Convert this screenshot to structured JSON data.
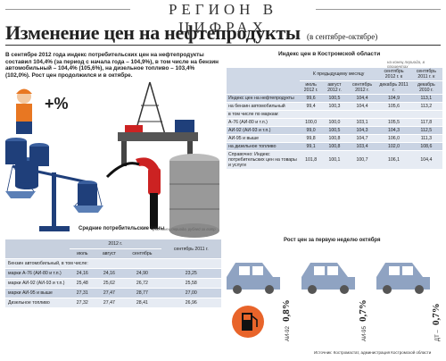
{
  "header": {
    "section_title": "РЕГИОН В ЦИФРАХ"
  },
  "title": {
    "main": "Изменение цен на нефтепродукты",
    "sub": "(в сентябре-октябре)"
  },
  "intro": "В сентябре 2012 года индекс потребительских цен на нефтепродукты составил 104,4% (за период с начала года – 104,9%), в том числе на бензин автомобильный – 104,4% (105,6%), на дизельное топливо – 103,4% (102,0%). Рост цен продолжился и в октябре.",
  "illustration": {
    "percent_sign": "+%",
    "colors": {
      "barrel": "#1f3f7a",
      "barrel_light": "#3a5f9e",
      "red": "#cc2222",
      "orange": "#e87722"
    }
  },
  "index_table": {
    "title": "Индекс цен в Костромской области",
    "note": "на конец периода, в процентах",
    "header_prev_month": "К предыдущему месяцу",
    "header_sep_2012": "сентябрь 2012 г. к",
    "header_sep_2011": "сентябрь 2011 г. к",
    "columns": [
      "июль 2012 г.",
      "август 2012 г.",
      "сентябрь 2012 г.",
      "декабрь 2011 г.",
      "декабрь 2010 г."
    ],
    "rows": [
      {
        "label": "Индекс цен на нефтепродукты",
        "values": [
          "99,6",
          "100,5",
          "104,4",
          "104,9",
          "113,1"
        ],
        "style": "shade"
      },
      {
        "label": "на бензин автомобильный",
        "values": [
          "99,4",
          "100,3",
          "104,4",
          "105,6",
          "113,2"
        ],
        "style": "plain"
      },
      {
        "label": "в том числе по маркам:",
        "values": [],
        "style": "group"
      },
      {
        "label": "А-76 (АИ-80 и т.п.)",
        "values": [
          "100,0",
          "100,0",
          "103,1",
          "105,5",
          "117,8"
        ],
        "style": "plain"
      },
      {
        "label": "АИ-92 (АИ-93 и т.п.)",
        "values": [
          "99,0",
          "100,5",
          "104,3",
          "104,3",
          "112,5"
        ],
        "style": "shade"
      },
      {
        "label": "АИ-95 и выше",
        "values": [
          "99,8",
          "100,8",
          "104,7",
          "106,0",
          "111,3"
        ],
        "style": "plain"
      },
      {
        "label": "на дизельное топливо",
        "values": [
          "99,1",
          "100,8",
          "103,4",
          "102,0",
          "108,6"
        ],
        "style": "shade"
      },
      {
        "label": "Справочно: Индекс потребительских цен на товары и услуги",
        "values": [
          "101,8",
          "100,1",
          "100,7",
          "106,1",
          "104,4"
        ],
        "style": "plain"
      }
    ]
  },
  "avg_table": {
    "title": "Средние потребительские цены",
    "note": "на конец периода, рублей за литр",
    "header_year": "2012 г.",
    "header_prev": "сентябрь 2011 г.",
    "columns": [
      "июль",
      "август",
      "сентябрь"
    ],
    "rows": [
      {
        "label": "Бензин автомобильный, в том числе:",
        "values": [],
        "style": "plain"
      },
      {
        "label": "марки А-76 (АИ-80 и т.п.)",
        "values": [
          "24,16",
          "24,16",
          "24,90",
          "23,25"
        ],
        "style": "shade"
      },
      {
        "label": "марки АИ-92 (АИ-93 и т.п.)",
        "values": [
          "25,48",
          "25,62",
          "26,72",
          "25,58"
        ],
        "style": "plain"
      },
      {
        "label": "марки АИ-95 и выше",
        "values": [
          "27,31",
          "27,47",
          "28,77",
          "27,00"
        ],
        "style": "shade"
      },
      {
        "label": "Дизельное топливо",
        "values": [
          "27,32",
          "27,47",
          "28,41",
          "26,96"
        ],
        "style": "plain"
      }
    ]
  },
  "growth": {
    "title": "Рост цен за первую неделю октября",
    "items": [
      {
        "label": "АИ-92",
        "value": "0,8%"
      },
      {
        "label": "АИ-95",
        "value": "0,7%"
      },
      {
        "label": "ДТ –",
        "value": "0,7%"
      }
    ],
    "colors": {
      "car": "#8fa3c2",
      "pump": "#e8642a"
    }
  },
  "source": "Источник: Костромастат, администрация Костромской области"
}
